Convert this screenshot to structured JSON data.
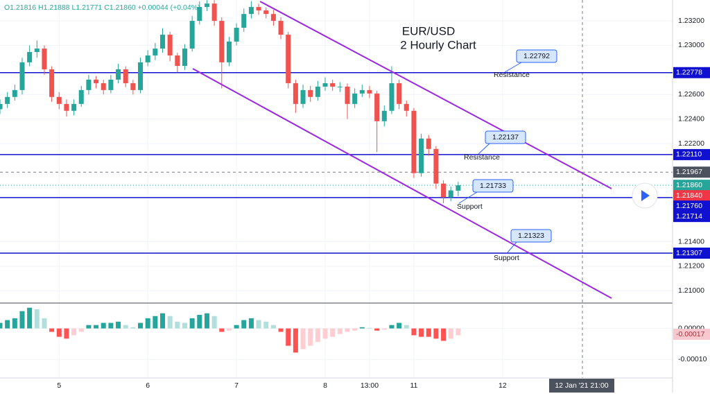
{
  "chart_data": {
    "type": "candlestick",
    "title": "EUR/USD",
    "subtitle": "2 Hourly Chart",
    "legend_text": "O1.21816 H1.21888 L1.21771 C1.21860 +0.00044 (+0.04%)",
    "up_color": "#26a69a",
    "down_color": "#ef5350",
    "open": [
      1.2248,
      1.22523,
      1.2258,
      1.22636,
      1.22862,
      1.22946,
      1.22974,
      1.22805,
      1.2258,
      1.22523,
      1.22467,
      1.22523,
      1.22636,
      1.22721,
      1.22692,
      1.22636,
      1.22721,
      1.22805,
      1.22692,
      1.22636,
      1.22862,
      1.22918,
      1.22974,
      1.23087,
      1.22918,
      1.22833,
      1.22974,
      1.232,
      1.23313,
      1.23341,
      1.232,
      1.22862,
      1.23031,
      1.23144,
      1.23256,
      1.23313,
      1.23285,
      1.23256,
      1.232,
      1.23087,
      1.22692,
      1.22523,
      1.22636,
      1.2258,
      1.22664,
      1.22692,
      1.22664,
      1.22664,
      1.22523,
      1.22608,
      1.22636,
      1.22608,
      1.22382,
      1.22467,
      1.22692,
      1.22523,
      1.22467,
      1.21959,
      1.22241,
      1.22156,
      1.21874,
      1.21762,
      1.21816
    ],
    "high": [
      1.2256,
      1.2262,
      1.2268,
      1.229,
      1.23,
      1.2304,
      1.23,
      1.2283,
      1.2262,
      1.2256,
      1.2256,
      1.2267,
      1.2276,
      1.2275,
      1.2272,
      1.2276,
      1.2285,
      1.2283,
      1.2272,
      1.229,
      1.2296,
      1.2302,
      1.2314,
      1.2311,
      1.2294,
      1.2301,
      1.2324,
      1.2336,
      1.23369,
      1.23369,
      1.2323,
      1.2307,
      1.2318,
      1.233,
      1.2336,
      1.2334,
      1.2331,
      1.2329,
      1.2323,
      1.2311,
      1.2272,
      1.2268,
      1.2267,
      1.2271,
      1.2274,
      1.2272,
      1.227,
      1.2269,
      1.2265,
      1.2268,
      1.2267,
      1.2263,
      1.2251,
      1.2283,
      1.2272,
      1.2255,
      1.2249,
      1.2228,
      1.2227,
      1.2218,
      1.219,
      1.2185,
      1.21888
    ],
    "low": [
      1.2244,
      1.2249,
      1.2255,
      1.226,
      1.2283,
      1.229,
      1.2276,
      1.2254,
      1.2248,
      1.2242,
      1.2243,
      1.225,
      1.226,
      1.2265,
      1.226,
      1.2261,
      1.2269,
      1.2266,
      1.226,
      1.2261,
      1.2283,
      1.2288,
      1.2294,
      1.2287,
      1.2278,
      1.228,
      1.2295,
      1.2317,
      1.2328,
      1.2316,
      1.2265,
      1.2283,
      1.23,
      1.2311,
      1.2322,
      1.2325,
      1.2322,
      1.2316,
      1.2305,
      1.2265,
      1.2245,
      1.2249,
      1.2254,
      1.2255,
      1.2263,
      1.2263,
      1.2262,
      1.224,
      1.2249,
      1.2258,
      1.2257,
      1.2213,
      1.2234,
      1.2244,
      1.2248,
      1.2242,
      1.2192,
      1.2193,
      1.221,
      1.2183,
      1.21714,
      1.2173,
      1.21771
    ],
    "close": [
      1.22523,
      1.2258,
      1.22636,
      1.22862,
      1.22946,
      1.22974,
      1.22805,
      1.2258,
      1.22523,
      1.22467,
      1.22523,
      1.22636,
      1.22721,
      1.22692,
      1.22636,
      1.22721,
      1.22805,
      1.22692,
      1.22636,
      1.22862,
      1.22918,
      1.22974,
      1.23087,
      1.22918,
      1.22833,
      1.22974,
      1.232,
      1.23313,
      1.23341,
      1.232,
      1.22862,
      1.23031,
      1.23144,
      1.23256,
      1.23313,
      1.23285,
      1.23256,
      1.232,
      1.23087,
      1.22692,
      1.22523,
      1.22636,
      1.2258,
      1.22664,
      1.22692,
      1.22664,
      1.22664,
      1.22523,
      1.22608,
      1.22636,
      1.22608,
      1.22382,
      1.22467,
      1.22692,
      1.22523,
      1.22467,
      1.21959,
      1.22241,
      1.22156,
      1.21874,
      1.21762,
      1.21818,
      1.2186
    ],
    "xticks": [
      {
        "value": 8,
        "label": "5"
      },
      {
        "value": 20,
        "label": "6"
      },
      {
        "value": 32,
        "label": "7"
      },
      {
        "value": 44,
        "label": "8"
      },
      {
        "value": 50,
        "label": "13:00"
      },
      {
        "value": 56,
        "label": "11"
      },
      {
        "value": 68,
        "label": "12"
      }
    ],
    "xlim": [
      0,
      91
    ],
    "ylim": [
      1.209,
      1.2337
    ],
    "yticks": [
      {
        "value": 1.232,
        "label": "1.23200"
      },
      {
        "value": 1.23,
        "label": "1.23000"
      },
      {
        "value": 1.226,
        "label": "1.22600"
      },
      {
        "value": 1.224,
        "label": "1.22400"
      },
      {
        "value": 1.222,
        "label": "1.22200"
      },
      {
        "value": 1.214,
        "label": "1.21400"
      },
      {
        "value": 1.212,
        "label": "1.21200"
      },
      {
        "value": 1.21,
        "label": "1.21000"
      }
    ],
    "grid": true,
    "levels": [
      {
        "value": 1.22778,
        "label": "1.22778"
      },
      {
        "value": 1.2211,
        "label": "1.22110"
      },
      {
        "value": 1.2176,
        "label": "1.21760"
      },
      {
        "value": 1.21307,
        "label": "1.21307"
      }
    ],
    "level_color": "#1010d0",
    "price_tags": [
      {
        "value": 1.21967,
        "label": "1.21967",
        "color": "#4c525e"
      },
      {
        "value": 1.2186,
        "label": "1.21860",
        "color": "#26a69a"
      },
      {
        "value": 1.2184,
        "label": "1.21840",
        "color": "#f23645"
      },
      {
        "value": 1.21714,
        "label": "1.21714",
        "color": "#1010d0"
      }
    ],
    "callouts": [
      {
        "label": "1.22792",
        "note": "Resistance"
      },
      {
        "label": "1.22137",
        "note": "Resistance"
      },
      {
        "label": "1.21733",
        "note": "Support"
      },
      {
        "label": "1.21323",
        "note": "Support"
      }
    ],
    "crosshair_label": "12 Jan '21  21:00",
    "macd": {
      "ylim": [
        -0.00016,
        8.2e-05
      ],
      "yticks": [
        {
          "value": 0,
          "label": "0.00000"
        },
        {
          "value": -0.0001,
          "label": "-0.00010"
        }
      ],
      "histogram": [
        1.8e-05,
        2.7e-05,
        3.3e-05,
        5.6e-05,
        6.7e-05,
        6.2e-05,
        3.3e-05,
        -1.1e-05,
        -2.7e-05,
        -3.3e-05,
        -2.2e-05,
        -1.1e-05,
        1.1e-05,
        1.1e-05,
        1.8e-05,
        1.8e-05,
        2.2e-05,
        1.1e-05,
        4e-06,
        1.8e-05,
        3.3e-05,
        4e-05,
        4.9e-05,
        4e-05,
        2.2e-05,
        1.8e-05,
        3.3e-05,
        4.4e-05,
        4.9e-05,
        4e-05,
        -1.1e-05,
        -7e-06,
        1.1e-05,
        2.7e-05,
        3.3e-05,
        2.7e-05,
        2.2e-05,
        1.1e-05,
        -1.1e-05,
        -5.6e-05,
        -7.8e-05,
        -6.7e-05,
        -5.6e-05,
        -4.4e-05,
        -3.3e-05,
        -2.7e-05,
        -1.8e-05,
        -1.1e-05,
        -7e-06,
        4e-06,
        2e-06,
        -7e-06,
        -4e-06,
        1.1e-05,
        1.8e-05,
        1.1e-05,
        -2.2e-05,
        -2.7e-05,
        -2.7e-05,
        -3.3e-05,
        -4e-05,
        -3.3e-05,
        -2.2e-05
      ],
      "tag": {
        "value": -0.00017,
        "label": "-0.00017"
      }
    }
  }
}
